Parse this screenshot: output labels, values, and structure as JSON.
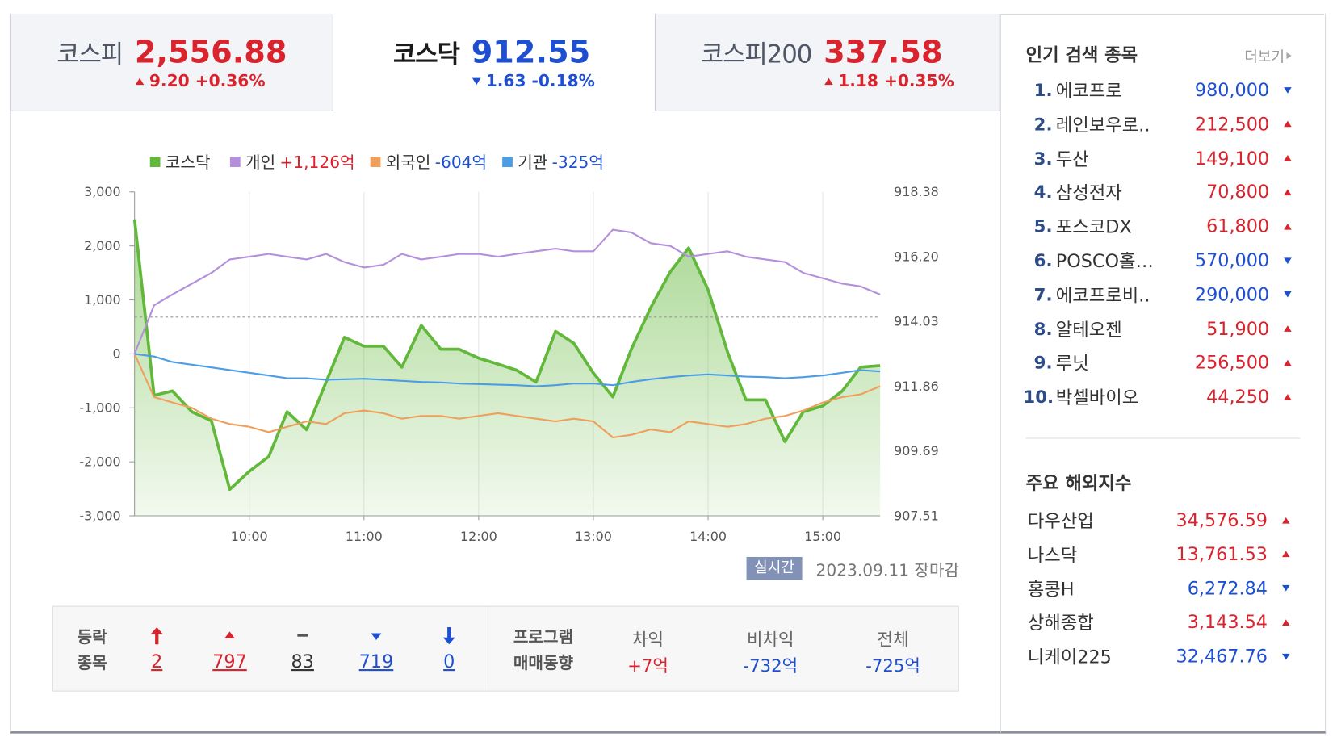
{
  "indices": [
    {
      "name": "코스피",
      "value": "2,556.88",
      "change": "9.20 +0.36%",
      "direction": "up",
      "selected": false
    },
    {
      "name": "코스닥",
      "value": "912.55",
      "change": "1.63 -0.18%",
      "direction": "down",
      "selected": true
    },
    {
      "name": "코스피200",
      "value": "337.58",
      "change": "1.18 +0.35%",
      "direction": "up",
      "selected": false
    }
  ],
  "chart_data": {
    "type": "line",
    "x": [
      9,
      9.17,
      9.33,
      9.5,
      9.67,
      9.83,
      10,
      10.17,
      10.33,
      10.5,
      10.67,
      10.83,
      11,
      11.17,
      11.33,
      11.5,
      11.67,
      11.83,
      12,
      12.17,
      12.33,
      12.5,
      12.67,
      12.83,
      13,
      13.17,
      13.33,
      13.5,
      13.67,
      13.83,
      14,
      14.17,
      14.33,
      14.5,
      14.67,
      14.83,
      15,
      15.17,
      15.33,
      15.5
    ],
    "xlim": [
      9,
      15.5
    ],
    "xticks": [
      {
        "value": 10,
        "label": "10:00"
      },
      {
        "value": 11,
        "label": "11:00"
      },
      {
        "value": 12,
        "label": "12:00"
      },
      {
        "value": 13,
        "label": "13:00"
      },
      {
        "value": 14,
        "label": "14:00"
      },
      {
        "value": 15,
        "label": "15:00"
      }
    ],
    "ylim": [
      -3000,
      3000
    ],
    "yticks": [
      {
        "value": 3000,
        "label": "3,000"
      },
      {
        "value": 2000,
        "label": "2,000"
      },
      {
        "value": 1000,
        "label": "1,000"
      },
      0,
      {
        "value": -1000,
        "label": "-1,000"
      },
      {
        "value": -2000,
        "label": "-2,000"
      },
      {
        "value": -3000,
        "label": "-3,000"
      }
    ],
    "y2lim": [
      907.51,
      918.38
    ],
    "y2ticks": [
      918.38,
      {
        "value": 916.2,
        "label": "916.20"
      },
      914.03,
      911.86,
      909.69,
      907.51
    ],
    "previous_close": 914.18,
    "series": [
      {
        "name": "코스닥",
        "color": "#62b83a",
        "axis": "y2",
        "area": true,
        "values": [
          917.46,
          911.55,
          911.7,
          911.0,
          910.7,
          908.4,
          909.0,
          909.5,
          911.0,
          910.4,
          912.0,
          913.5,
          913.2,
          913.2,
          912.5,
          913.9,
          913.1,
          913.1,
          912.8,
          912.6,
          912.4,
          912.0,
          913.7,
          913.3,
          912.3,
          911.5,
          913.1,
          914.5,
          915.7,
          916.5,
          915.1,
          913.0,
          911.4,
          911.4,
          910.0,
          911.0,
          911.2,
          911.7,
          912.5,
          912.55
        ]
      },
      {
        "name": "개인",
        "color": "#b38fdc",
        "total": "+1,126억",
        "values": [
          0,
          900,
          1100,
          1300,
          1500,
          1750,
          1800,
          1850,
          1800,
          1750,
          1850,
          1700,
          1600,
          1650,
          1850,
          1750,
          1800,
          1850,
          1850,
          1800,
          1850,
          1900,
          1950,
          1900,
          1900,
          2300,
          2250,
          2050,
          2000,
          1800,
          1850,
          1900,
          1800,
          1750,
          1700,
          1500,
          1400,
          1300,
          1250,
          1100
        ]
      },
      {
        "name": "외국인",
        "color": "#ef9f5b",
        "total": "-604억",
        "values": [
          0,
          -800,
          -900,
          -1000,
          -1200,
          -1300,
          -1350,
          -1450,
          -1350,
          -1250,
          -1300,
          -1100,
          -1050,
          -1100,
          -1200,
          -1150,
          -1150,
          -1200,
          -1150,
          -1100,
          -1150,
          -1200,
          -1250,
          -1200,
          -1250,
          -1550,
          -1500,
          -1400,
          -1450,
          -1250,
          -1300,
          -1350,
          -1300,
          -1200,
          -1150,
          -1050,
          -900,
          -800,
          -750,
          -600
        ]
      },
      {
        "name": "기관",
        "color": "#4b9de6",
        "total": "-325억",
        "values": [
          0,
          -50,
          -150,
          -200,
          -250,
          -300,
          -350,
          -400,
          -450,
          -450,
          -480,
          -470,
          -460,
          -480,
          -500,
          -520,
          -530,
          -550,
          -560,
          -570,
          -580,
          -600,
          -580,
          -550,
          -550,
          -580,
          -520,
          -470,
          -430,
          -400,
          -380,
          -400,
          -420,
          -430,
          -450,
          -430,
          -400,
          -350,
          -300,
          -325
        ]
      }
    ],
    "badge": "실시간",
    "updated": "2023.09.11 장마감"
  },
  "breadth": {
    "title": [
      "등락",
      "종목"
    ],
    "items": [
      {
        "kind": "upper",
        "count": "2"
      },
      {
        "kind": "up",
        "count": "797"
      },
      {
        "kind": "flat",
        "count": "83"
      },
      {
        "kind": "down",
        "count": "719"
      },
      {
        "kind": "lower",
        "count": "0"
      }
    ]
  },
  "program": {
    "title": [
      "프로그램",
      "매매동향"
    ],
    "columns": [
      {
        "name": "차익",
        "value": "+7억"
      },
      {
        "name": "비차익",
        "value": "-732억"
      },
      {
        "name": "전체",
        "value": "-725억"
      }
    ]
  },
  "popular": {
    "title": "인기 검색 종목",
    "more": "더보기",
    "items": [
      {
        "rank": "1.",
        "name": "에코프로",
        "price": "980,000",
        "direction": "down"
      },
      {
        "rank": "2.",
        "name": "레인보우로..",
        "price": "212,500",
        "direction": "up"
      },
      {
        "rank": "3.",
        "name": "두산",
        "price": "149,100",
        "direction": "up"
      },
      {
        "rank": "4.",
        "name": "삼성전자",
        "price": "70,800",
        "direction": "up"
      },
      {
        "rank": "5.",
        "name": "포스코DX",
        "price": "61,800",
        "direction": "up"
      },
      {
        "rank": "6.",
        "name": "POSCO홀…",
        "price": "570,000",
        "direction": "down"
      },
      {
        "rank": "7.",
        "name": "에코프로비..",
        "price": "290,000",
        "direction": "down"
      },
      {
        "rank": "8.",
        "name": "알테오젠",
        "price": "51,900",
        "direction": "up"
      },
      {
        "rank": "9.",
        "name": "루닛",
        "price": "256,500",
        "direction": "up"
      },
      {
        "rank": "10.",
        "name": "박셀바이오",
        "price": "44,250",
        "direction": "up"
      }
    ]
  },
  "overseas": {
    "title": "주요 해외지수",
    "items": [
      {
        "name": "다우산업",
        "value": "34,576.59",
        "direction": "up"
      },
      {
        "name": "나스닥",
        "value": "13,761.53",
        "direction": "up"
      },
      {
        "name": "홍콩H",
        "value": "6,272.84",
        "direction": "down"
      },
      {
        "name": "상해종합",
        "value": "3,143.54",
        "direction": "up"
      },
      {
        "name": "니케이225",
        "value": "32,467.76",
        "direction": "down"
      }
    ]
  }
}
